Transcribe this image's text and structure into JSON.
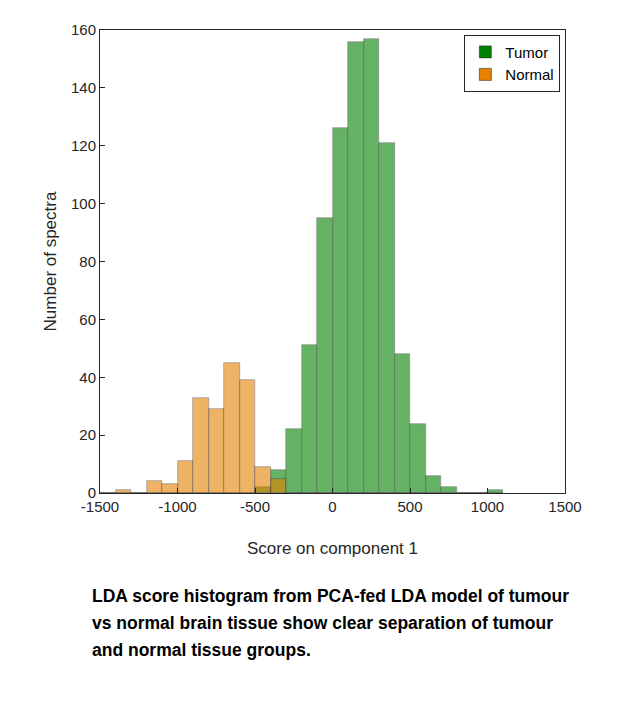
{
  "chart_data": {
    "type": "histogram",
    "x_label": "Score on component 1",
    "y_label": "Number of spectra",
    "bins": [
      -1500,
      -1400,
      -1300,
      -1200,
      -1100,
      -1000,
      -900,
      -800,
      -700,
      -600,
      -500,
      -400,
      -300,
      -200,
      -100,
      0,
      100,
      200,
      300,
      400,
      500,
      600,
      700,
      800,
      900,
      1000,
      1100
    ],
    "series": [
      {
        "name": "Tumor",
        "color": "#008000",
        "values": [
          0,
          0,
          0,
          0,
          0,
          0,
          0,
          0,
          0,
          0,
          2,
          8,
          22,
          51,
          95,
          126,
          156,
          157,
          121,
          48,
          24,
          6,
          2,
          0,
          0,
          1
        ]
      },
      {
        "name": "Normal",
        "color": "#e68200",
        "values": [
          0,
          1,
          0,
          4,
          3,
          11,
          33,
          29,
          45,
          39,
          9,
          5,
          0,
          0,
          0,
          0,
          0,
          0,
          0,
          0,
          0,
          0,
          0,
          0,
          0,
          0
        ]
      }
    ],
    "xlim": [
      -1500,
      1500
    ],
    "xticks": [
      -1500,
      -1000,
      -500,
      0,
      500,
      1000,
      1500
    ],
    "ylim": [
      0,
      160
    ],
    "yticks": [
      0,
      20,
      40,
      60,
      80,
      100,
      120,
      140,
      160
    ],
    "grid": false,
    "legend": "top-right",
    "caption": [
      "LDA score histogram from PCA-fed LDA model of tumour",
      "vs normal brain tissue show clear separation of tumour",
      "and normal tissue groups."
    ]
  }
}
